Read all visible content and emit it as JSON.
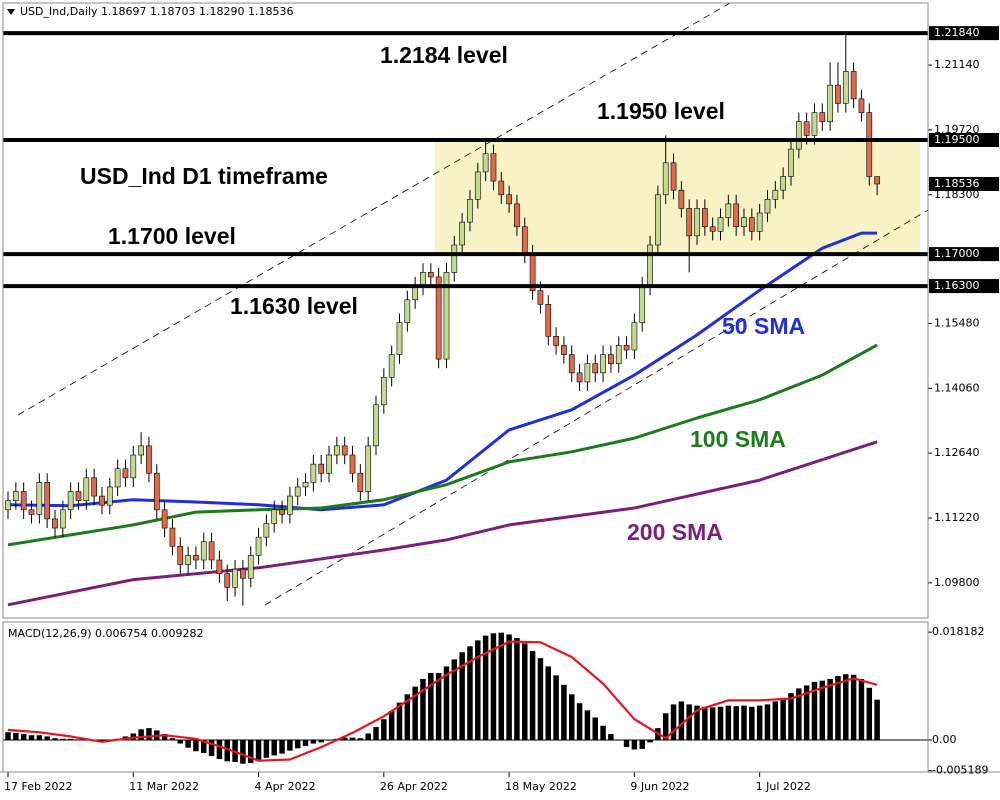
{
  "chart_data": [
    {
      "type": "candlestick",
      "header": "USD_Ind,Daily  1.18697 1.18703 1.18290 1.18536",
      "xlim": [
        -0.64,
        117.5
      ],
      "ylim": [
        1.0903,
        1.225
      ],
      "up_color": "#c5d98f",
      "down_color": "#e2694a",
      "yticks": [
        {
          "value": 1.2114,
          "label": "1.21140"
        },
        {
          "value": 1.1972,
          "label": "1.19720"
        },
        {
          "value": 1.183,
          "label": "1.18300"
        },
        {
          "value": 1.1548,
          "label": "1.15480"
        },
        {
          "value": 1.1406,
          "label": "1.14060"
        },
        {
          "value": 1.1264,
          "label": "1.12640"
        },
        {
          "value": 1.1122,
          "label": "1.11220"
        },
        {
          "value": 1.098,
          "label": "1.09800"
        }
      ],
      "levels": [
        {
          "value": 1.2184,
          "label": "1.21840"
        },
        {
          "value": 1.195,
          "label": "1.19500"
        },
        {
          "value": 1.17,
          "label": "1.17000"
        },
        {
          "value": 1.163,
          "label": "1.16300"
        }
      ],
      "zone_color": "#f7f3c6",
      "xticks": [
        {
          "value": 0,
          "label": "17 Feb 2022"
        },
        {
          "value": 16,
          "label": "11 Mar 2022"
        },
        {
          "value": 32,
          "label": "4 Apr 2022"
        },
        {
          "value": 48,
          "label": "26 Apr 2022"
        },
        {
          "value": 64,
          "label": "18 May 2022"
        },
        {
          "value": 80,
          "label": "9 Jun 2022"
        },
        {
          "value": 96,
          "label": "1 Jul 2022"
        }
      ],
      "annotations": [
        "1.2184 level",
        "1.1950 level",
        "USD_Ind D1 timeframe",
        "1.1700 level",
        "1.1630 level"
      ],
      "ohlc": [
        [
          1.114,
          1.118,
          1.112,
          1.116
        ],
        [
          1.116,
          1.12,
          1.114,
          1.118
        ],
        [
          1.118,
          1.12,
          1.112,
          1.114
        ],
        [
          1.114,
          1.116,
          1.111,
          1.113
        ],
        [
          1.113,
          1.122,
          1.111,
          1.12
        ],
        [
          1.12,
          1.122,
          1.11,
          1.112
        ],
        [
          1.112,
          1.114,
          1.108,
          1.11
        ],
        [
          1.11,
          1.116,
          1.108,
          1.114
        ],
        [
          1.114,
          1.12,
          1.112,
          1.118
        ],
        [
          1.118,
          1.12,
          1.114,
          1.116
        ],
        [
          1.116,
          1.123,
          1.114,
          1.121
        ],
        [
          1.121,
          1.123,
          1.115,
          1.117
        ],
        [
          1.117,
          1.119,
          1.113,
          1.115
        ],
        [
          1.115,
          1.121,
          1.113,
          1.119
        ],
        [
          1.119,
          1.125,
          1.117,
          1.123
        ],
        [
          1.123,
          1.125,
          1.119,
          1.121
        ],
        [
          1.121,
          1.128,
          1.119,
          1.126
        ],
        [
          1.126,
          1.131,
          1.124,
          1.128
        ],
        [
          1.128,
          1.13,
          1.12,
          1.122
        ],
        [
          1.122,
          1.124,
          1.112,
          1.114
        ],
        [
          1.114,
          1.116,
          1.108,
          1.11
        ],
        [
          1.11,
          1.112,
          1.104,
          1.106
        ],
        [
          1.106,
          1.108,
          1.1,
          1.102
        ],
        [
          1.102,
          1.106,
          1.1,
          1.104
        ],
        [
          1.104,
          1.106,
          1.101,
          1.103
        ],
        [
          1.103,
          1.109,
          1.101,
          1.107
        ],
        [
          1.107,
          1.109,
          1.101,
          1.103
        ],
        [
          1.103,
          1.105,
          1.098,
          1.1
        ],
        [
          1.1,
          1.102,
          1.094,
          1.097
        ],
        [
          1.097,
          1.103,
          1.095,
          1.101
        ],
        [
          1.101,
          1.103,
          1.093,
          1.099
        ],
        [
          1.099,
          1.106,
          1.097,
          1.104
        ],
        [
          1.104,
          1.11,
          1.102,
          1.108
        ],
        [
          1.108,
          1.113,
          1.106,
          1.111
        ],
        [
          1.111,
          1.116,
          1.109,
          1.114
        ],
        [
          1.114,
          1.116,
          1.111,
          1.113
        ],
        [
          1.113,
          1.119,
          1.111,
          1.117
        ],
        [
          1.117,
          1.121,
          1.115,
          1.119
        ],
        [
          1.119,
          1.122,
          1.117,
          1.12
        ],
        [
          1.12,
          1.126,
          1.118,
          1.124
        ],
        [
          1.124,
          1.126,
          1.12,
          1.122
        ],
        [
          1.122,
          1.128,
          1.12,
          1.126
        ],
        [
          1.126,
          1.13,
          1.124,
          1.128
        ],
        [
          1.128,
          1.13,
          1.124,
          1.126
        ],
        [
          1.126,
          1.128,
          1.12,
          1.122
        ],
        [
          1.122,
          1.124,
          1.116,
          1.118
        ],
        [
          1.118,
          1.13,
          1.116,
          1.128
        ],
        [
          1.128,
          1.139,
          1.126,
          1.137
        ],
        [
          1.137,
          1.145,
          1.135,
          1.143
        ],
        [
          1.143,
          1.15,
          1.141,
          1.148
        ],
        [
          1.148,
          1.157,
          1.146,
          1.155
        ],
        [
          1.155,
          1.162,
          1.153,
          1.16
        ],
        [
          1.16,
          1.165,
          1.158,
          1.163
        ],
        [
          1.163,
          1.168,
          1.161,
          1.166
        ],
        [
          1.166,
          1.168,
          1.163,
          1.165
        ],
        [
          1.165,
          1.167,
          1.145,
          1.147
        ],
        [
          1.147,
          1.168,
          1.145,
          1.166
        ],
        [
          1.166,
          1.174,
          1.164,
          1.172
        ],
        [
          1.172,
          1.179,
          1.17,
          1.177
        ],
        [
          1.177,
          1.184,
          1.175,
          1.182
        ],
        [
          1.182,
          1.19,
          1.18,
          1.188
        ],
        [
          1.188,
          1.195,
          1.186,
          1.192
        ],
        [
          1.192,
          1.194,
          1.184,
          1.186
        ],
        [
          1.186,
          1.188,
          1.181,
          1.183
        ],
        [
          1.183,
          1.185,
          1.179,
          1.181
        ],
        [
          1.181,
          1.183,
          1.174,
          1.176
        ],
        [
          1.176,
          1.178,
          1.168,
          1.17
        ],
        [
          1.17,
          1.172,
          1.16,
          1.162
        ],
        [
          1.162,
          1.164,
          1.157,
          1.159
        ],
        [
          1.159,
          1.161,
          1.15,
          1.152
        ],
        [
          1.152,
          1.154,
          1.148,
          1.15
        ],
        [
          1.15,
          1.152,
          1.146,
          1.148
        ],
        [
          1.148,
          1.15,
          1.142,
          1.144
        ],
        [
          1.144,
          1.146,
          1.14,
          1.142
        ],
        [
          1.142,
          1.148,
          1.14,
          1.146
        ],
        [
          1.146,
          1.148,
          1.142,
          1.144
        ],
        [
          1.144,
          1.15,
          1.142,
          1.148
        ],
        [
          1.148,
          1.15,
          1.144,
          1.146
        ],
        [
          1.146,
          1.152,
          1.144,
          1.15
        ],
        [
          1.15,
          1.152,
          1.147,
          1.149
        ],
        [
          1.149,
          1.157,
          1.147,
          1.155
        ],
        [
          1.155,
          1.165,
          1.153,
          1.163
        ],
        [
          1.163,
          1.174,
          1.161,
          1.172
        ],
        [
          1.172,
          1.185,
          1.17,
          1.183
        ],
        [
          1.183,
          1.196,
          1.181,
          1.19
        ],
        [
          1.19,
          1.192,
          1.182,
          1.184
        ],
        [
          1.184,
          1.186,
          1.178,
          1.18
        ],
        [
          1.18,
          1.182,
          1.166,
          1.174
        ],
        [
          1.174,
          1.182,
          1.172,
          1.18
        ],
        [
          1.18,
          1.182,
          1.174,
          1.176
        ],
        [
          1.176,
          1.178,
          1.173,
          1.175
        ],
        [
          1.175,
          1.18,
          1.173,
          1.178
        ],
        [
          1.178,
          1.183,
          1.176,
          1.181
        ],
        [
          1.181,
          1.183,
          1.174,
          1.176
        ],
        [
          1.176,
          1.18,
          1.174,
          1.178
        ],
        [
          1.178,
          1.18,
          1.173,
          1.175
        ],
        [
          1.175,
          1.181,
          1.173,
          1.179
        ],
        [
          1.179,
          1.184,
          1.177,
          1.182
        ],
        [
          1.182,
          1.186,
          1.18,
          1.184
        ],
        [
          1.184,
          1.189,
          1.182,
          1.187
        ],
        [
          1.187,
          1.195,
          1.185,
          1.193
        ],
        [
          1.193,
          1.201,
          1.191,
          1.199
        ],
        [
          1.199,
          1.201,
          1.194,
          1.196
        ],
        [
          1.196,
          1.203,
          1.194,
          1.201
        ],
        [
          1.201,
          1.203,
          1.197,
          1.199
        ],
        [
          1.199,
          1.212,
          1.197,
          1.207
        ],
        [
          1.207,
          1.212,
          1.201,
          1.203
        ],
        [
          1.203,
          1.2184,
          1.201,
          1.21
        ],
        [
          1.21,
          1.212,
          1.202,
          1.204
        ],
        [
          1.204,
          1.206,
          1.199,
          1.201
        ],
        [
          1.201,
          1.203,
          1.185,
          1.187
        ],
        [
          1.18697,
          1.18703,
          1.1829,
          1.18536
        ]
      ],
      "series": [
        {
          "name": "50 SMA",
          "color": "#1f2fe0",
          "x": [
            0,
            8,
            16,
            24,
            32,
            40,
            48,
            56,
            64,
            72,
            80,
            88,
            96,
            104,
            109,
            111
          ],
          "values": [
            1.1151,
            1.1149,
            1.1162,
            1.1157,
            1.1151,
            1.114,
            1.1151,
            1.1205,
            1.1315,
            1.1359,
            1.1435,
            1.1523,
            1.1621,
            1.1713,
            1.1746,
            1.1746
          ]
        },
        {
          "name": "100 SMA",
          "color": "#1d7a1d",
          "x": [
            0,
            16,
            24,
            32,
            40,
            48,
            56,
            64,
            72,
            80,
            88,
            96,
            104,
            111
          ],
          "values": [
            1.1063,
            1.1107,
            1.1135,
            1.114,
            1.1144,
            1.1162,
            1.1195,
            1.1245,
            1.1267,
            1.1297,
            1.1341,
            1.1381,
            1.1435,
            1.1501
          ]
        },
        {
          "name": "200 SMA",
          "color": "#7a1f7a",
          "x": [
            0,
            16,
            32,
            48,
            56,
            64,
            80,
            96,
            111
          ],
          "values": [
            1.0932,
            1.0987,
            1.1013,
            1.1052,
            1.1074,
            1.1107,
            1.1144,
            1.1205,
            1.1289
          ]
        }
      ]
    },
    {
      "type": "bar",
      "title": "MACD(12,26,9) 0.006754 0.009282",
      "ylim": [
        -0.0054,
        0.0199
      ],
      "yticks": [
        0.018182,
        {
          "value": 0,
          "label": "0.00"
        },
        -0.005189
      ],
      "color": "#000000",
      "values": [
        0.0013,
        0.0012,
        0.001,
        0.0008,
        0.0008,
        0.0006,
        0.0003,
        0.0002,
        0.0002,
        0.0001,
        -0.0001,
        -0.0002,
        -0.0003,
        -0.0001,
        0.0002,
        0.0006,
        0.0011,
        0.0018,
        0.002,
        0.0016,
        0.001,
        0.0003,
        -0.0006,
        -0.0013,
        -0.0019,
        -0.0022,
        -0.0027,
        -0.0032,
        -0.0036,
        -0.0037,
        -0.004,
        -0.0039,
        -0.0035,
        -0.003,
        -0.0026,
        -0.0023,
        -0.0018,
        -0.0014,
        -0.001,
        -0.0006,
        -0.0004,
        -0.0001,
        0.0002,
        0.0004,
        0.0004,
        0.0003,
        0.0011,
        0.0022,
        0.0035,
        0.0049,
        0.0063,
        0.0077,
        0.009,
        0.0103,
        0.0113,
        0.0113,
        0.0124,
        0.0136,
        0.0148,
        0.0158,
        0.0168,
        0.0176,
        0.018,
        0.0181,
        0.0178,
        0.0172,
        0.0163,
        0.015,
        0.0138,
        0.0124,
        0.0109,
        0.0093,
        0.0077,
        0.0062,
        0.005,
        0.0038,
        0.0024,
        0.001,
        -0.0001,
        -0.0012,
        -0.0016,
        -0.0015,
        -0.0004,
        0.002,
        0.0045,
        0.006,
        0.0065,
        0.006,
        0.0058,
        0.0056,
        0.0055,
        0.0056,
        0.0058,
        0.0057,
        0.0058,
        0.0056,
        0.0058,
        0.006,
        0.0065,
        0.0071,
        0.0079,
        0.0087,
        0.0092,
        0.0098,
        0.01,
        0.0103,
        0.0108,
        0.0111,
        0.011,
        0.0103,
        0.0088,
        0.0068
      ],
      "series": [
        {
          "color": "#e8141e",
          "x": [
            0,
            4,
            8,
            12,
            16,
            20,
            24,
            28,
            32,
            36,
            40,
            44,
            48,
            52,
            56,
            60,
            64,
            68,
            72,
            76,
            80,
            84,
            88,
            92,
            96,
            100,
            104,
            108,
            111
          ],
          "values": [
            0.0017,
            0.0013,
            0.0006,
            -0.0003,
            0.0004,
            0.0008,
            0.0002,
            -0.0015,
            -0.0035,
            -0.0033,
            -0.0012,
            0.0012,
            0.004,
            0.0075,
            0.011,
            0.014,
            0.0166,
            0.0165,
            0.014,
            0.0095,
            0.0035,
            0.0003,
            0.005,
            0.0067,
            0.0067,
            0.007,
            0.0088,
            0.0104,
            0.0093
          ]
        }
      ]
    }
  ]
}
